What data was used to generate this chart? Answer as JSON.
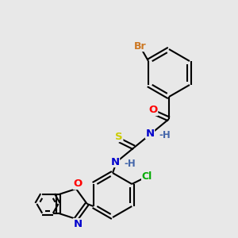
{
  "bg_color": "#e8e8e8",
  "bond_color": "#000000",
  "atom_colors": {
    "Br": "#cc7722",
    "O": "#ff0000",
    "N": "#0000cc",
    "S": "#cccc00",
    "Cl": "#00aa00",
    "H": "#4466aa"
  },
  "font_size": 9.5,
  "lw": 1.5
}
